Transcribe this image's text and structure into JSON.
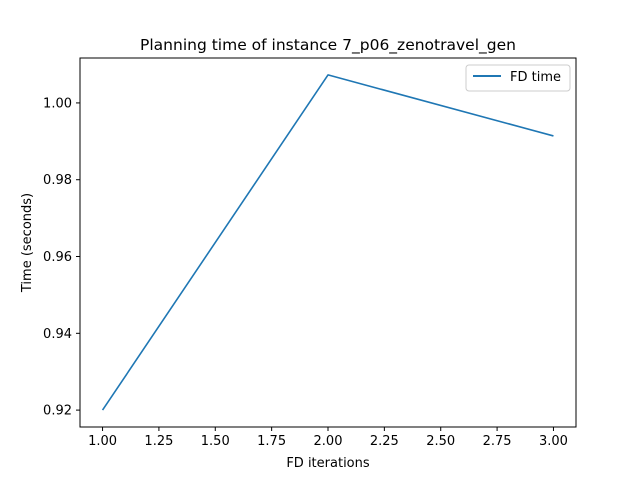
{
  "chart_data": {
    "type": "line",
    "title": "Planning time of instance 7_p06_zenotravel_gen",
    "xlabel": "FD iterations",
    "ylabel": "Time (seconds)",
    "x": [
      1.0,
      2.0,
      3.0
    ],
    "series": [
      {
        "name": "FD time",
        "values": [
          0.92,
          1.0073,
          0.9914
        ],
        "color": "#1f77b4"
      }
    ],
    "xlim": [
      0.9,
      3.1
    ],
    "ylim": [
      0.9156,
      1.0117
    ],
    "xticks": [
      1.0,
      1.25,
      1.5,
      1.75,
      2.0,
      2.25,
      2.5,
      2.75,
      3.0
    ],
    "xtick_labels": [
      "1.00",
      "1.25",
      "1.50",
      "1.75",
      "2.00",
      "2.25",
      "2.50",
      "2.75",
      "3.00"
    ],
    "yticks": [
      0.92,
      0.94,
      0.96,
      0.98,
      1.0
    ],
    "ytick_labels": [
      "0.92",
      "0.94",
      "0.96",
      "0.98",
      "1.00"
    ],
    "grid": false,
    "legend_position": "top-right"
  }
}
